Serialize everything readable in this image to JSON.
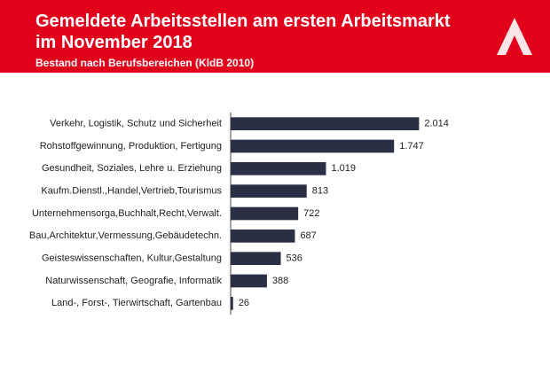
{
  "chart_data": {
    "type": "bar",
    "orientation": "horizontal",
    "title": "Gemeldete Arbeitsstellen am ersten Arbeitsmarkt im November 2018",
    "subtitle": "Bestand nach Berufsbereichen (KldB 2010)",
    "categories": [
      "Verkehr, Logistik, Schutz und Sicherheit",
      "Rohstoffgewinnung, Produktion, Fertigung",
      "Gesundheit, Soziales, Lehre u. Erziehung",
      "Kaufm.Dienstl.,Handel,Vertrieb,Tourismus",
      "Unternehmensorga,Buchhalt,Recht,Verwalt.",
      "Bau,Architektur,Vermessung,Gebäudetechn.",
      "Geisteswissenschaften, Kultur,Gestaltung",
      "Naturwissenschaft, Geografie, Informatik",
      "Land-, Forst-, Tierwirtschaft, Gartenbau"
    ],
    "values": [
      2014,
      1747,
      1019,
      813,
      722,
      687,
      536,
      388,
      26
    ],
    "value_labels": [
      "2.014",
      "1.747",
      "1.019",
      "813",
      "722",
      "687",
      "536",
      "388",
      "26"
    ],
    "color": "#2b2f45",
    "xlim": [
      0,
      2200
    ]
  }
}
